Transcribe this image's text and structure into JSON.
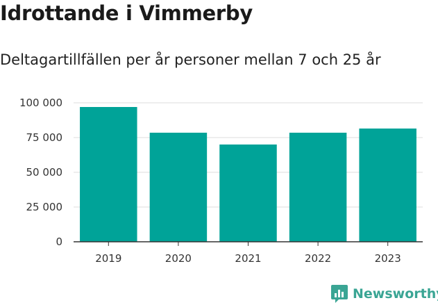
{
  "header": {
    "title": "Idrottande i Vimmerby",
    "subtitle": "Deltagartillfällen per år personer mellan 7 och 25 år"
  },
  "brand": {
    "name": "Newsworthy",
    "icon": "newsworthy-logo-icon",
    "color": "#3aa594"
  },
  "colors": {
    "bar": "#00a398",
    "grid": "#dddddd",
    "axis": "#333333"
  },
  "chart_data": {
    "type": "bar",
    "categories": [
      "2019",
      "2020",
      "2021",
      "2022",
      "2023"
    ],
    "values": [
      97000,
      78500,
      70000,
      78500,
      81500
    ],
    "ylim": [
      0,
      100000
    ],
    "yticks": [
      0,
      25000,
      50000,
      75000,
      100000
    ],
    "ytick_labels": [
      "0",
      "25 000",
      "50 000",
      "75 000",
      "100 000"
    ],
    "grid": true,
    "xlabel": "",
    "ylabel": ""
  }
}
